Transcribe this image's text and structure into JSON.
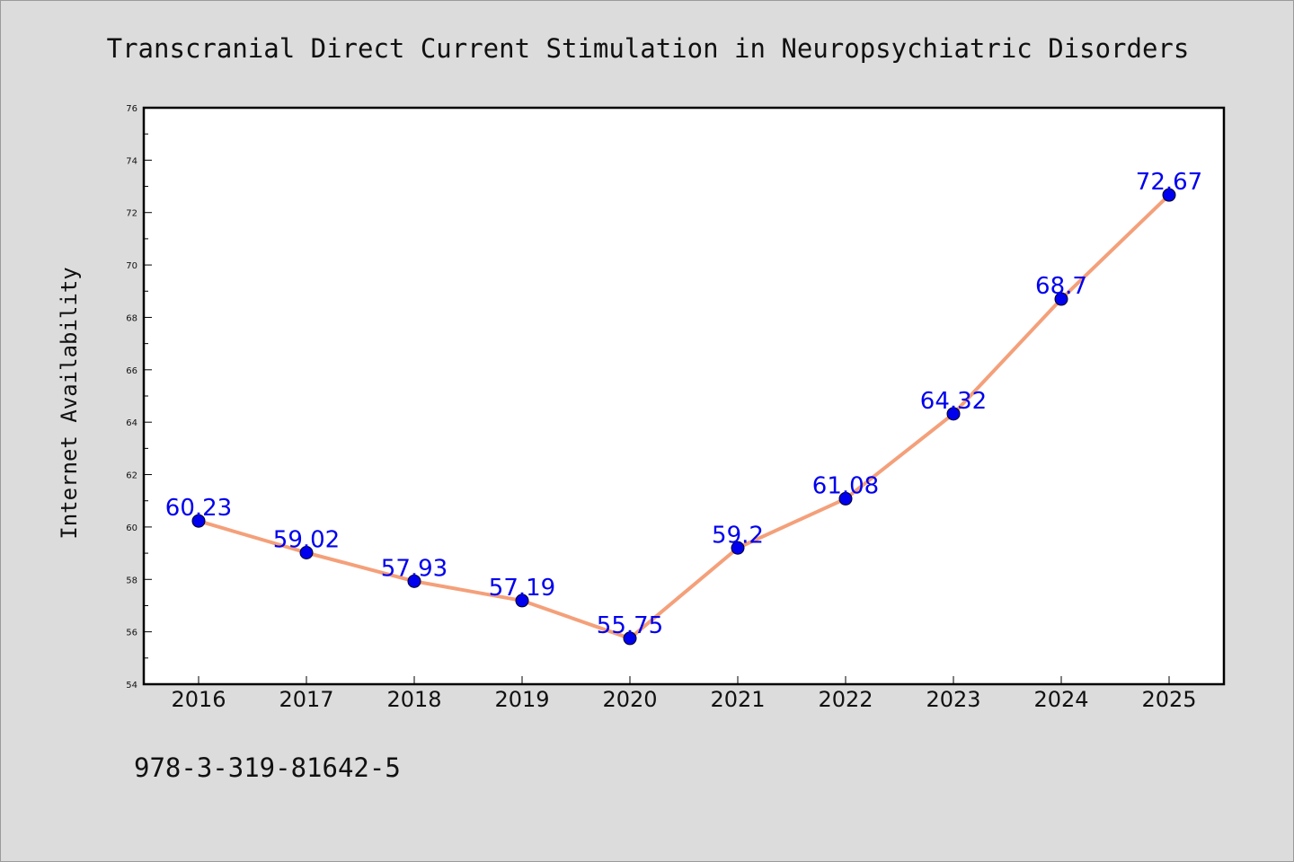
{
  "chart_data": {
    "type": "line",
    "title": "Transcranial Direct Current Stimulation in Neuropsychiatric Disorders",
    "xlabel": "",
    "ylabel": "Internet Availability",
    "categories": [
      "2016",
      "2017",
      "2018",
      "2019",
      "2020",
      "2021",
      "2022",
      "2023",
      "2024",
      "2025"
    ],
    "series": [
      {
        "values": [
          60.23,
          59.02,
          57.93,
          57.19,
          55.75,
          59.2,
          61.08,
          64.32,
          68.7,
          72.67
        ],
        "labels": [
          "60.23",
          "59.02",
          "57.93",
          "57.19",
          "55.75",
          "59.2",
          "61.08",
          "64.32",
          "68.7",
          "72.67"
        ]
      }
    ],
    "ylim": [
      54,
      76
    ],
    "yticks": [
      "54",
      "56",
      "58",
      "60",
      "62",
      "64",
      "66",
      "68",
      "70",
      "72",
      "74",
      "76"
    ],
    "grid": false,
    "line_color": "#f4a07a",
    "marker_color": "#0000ee",
    "label_color": "#0000ee"
  },
  "footer": {
    "isbn": "978-3-319-81642-5"
  }
}
